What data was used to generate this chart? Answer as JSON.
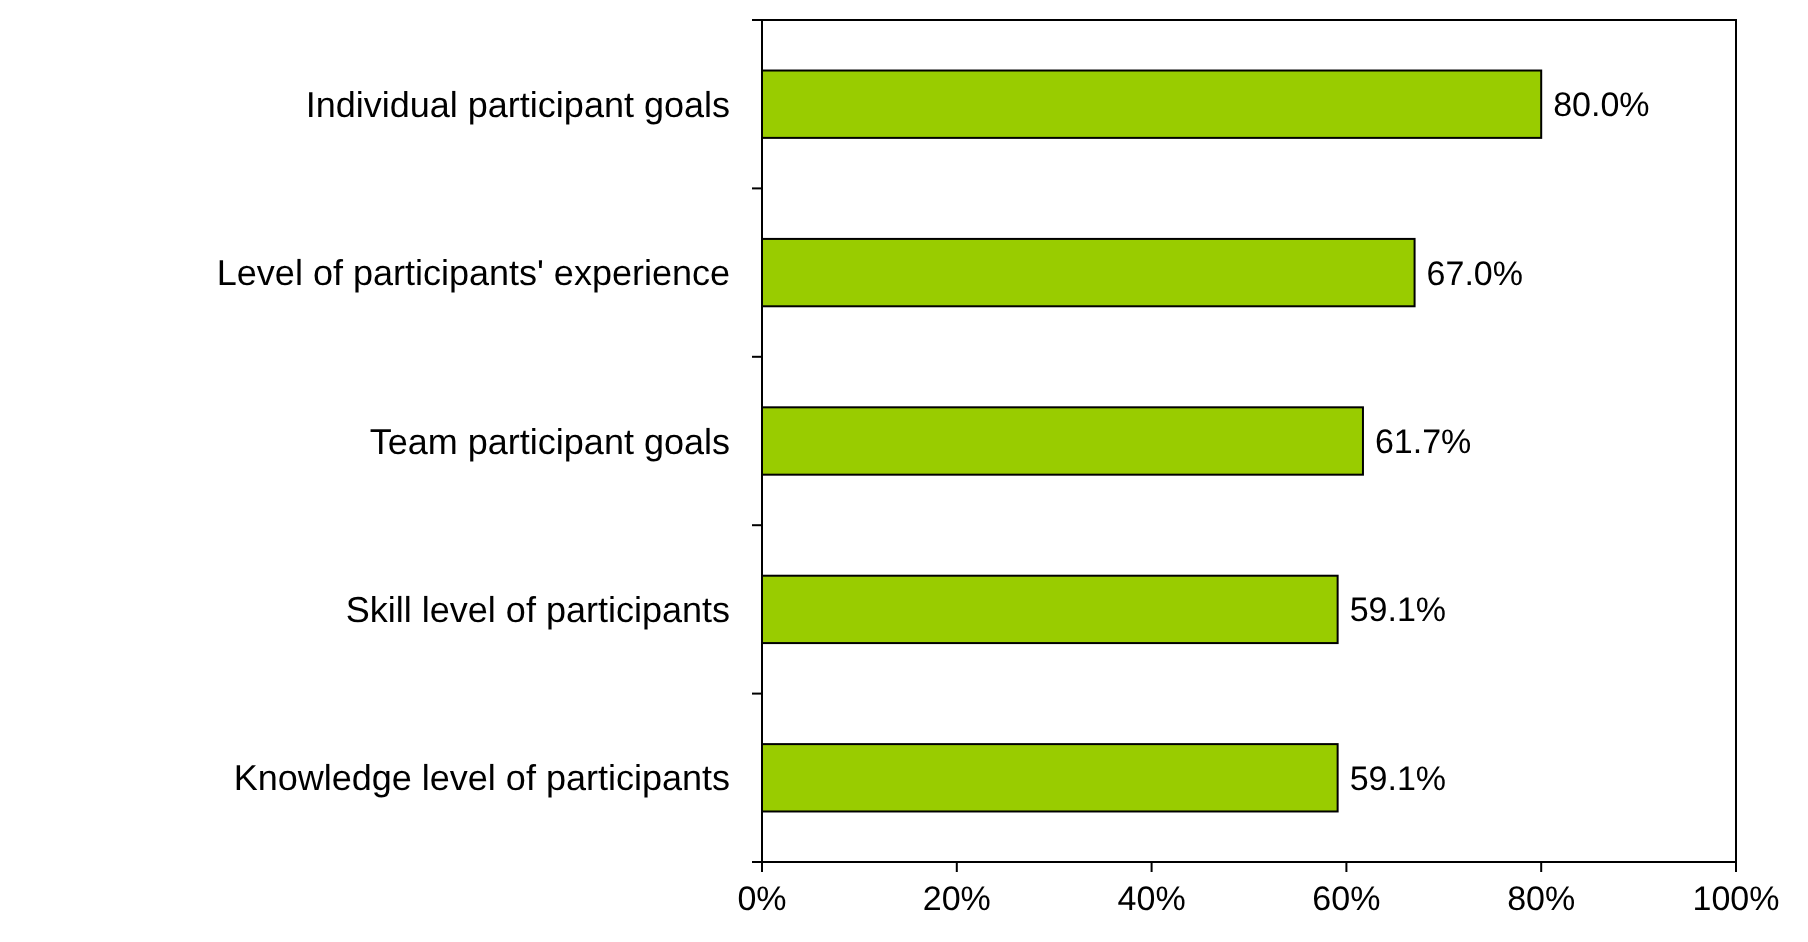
{
  "chart_data": {
    "type": "bar",
    "orientation": "horizontal",
    "categories": [
      "Individual participant goals",
      "Level of participants' experience",
      "Team participant goals",
      "Skill level of participants",
      "Knowledge level of participants"
    ],
    "values": [
      80.0,
      67.0,
      61.7,
      59.1,
      59.1
    ],
    "value_labels": [
      "80.0%",
      "67.0%",
      "61.7%",
      "59.1%",
      "59.1%"
    ],
    "color": "#99cc00",
    "xlim": [
      0,
      100
    ],
    "xticks": [
      {
        "value": 0,
        "label": "0%"
      },
      {
        "value": 20,
        "label": "20%"
      },
      {
        "value": 40,
        "label": "40%"
      },
      {
        "value": 60,
        "label": "60%"
      },
      {
        "value": 80,
        "label": "80%"
      },
      {
        "value": 100,
        "label": "100%"
      }
    ],
    "grid": false
  }
}
